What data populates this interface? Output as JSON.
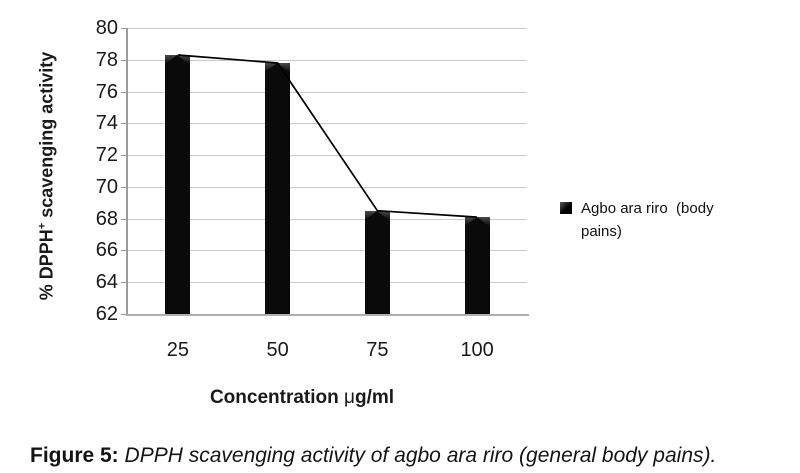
{
  "figure": {
    "caption_label": "Figure 5:",
    "caption_text": "DPPH scavenging activity of agbo ara riro (general body pains)."
  },
  "chart_data": {
    "type": "bar",
    "overlay": "line",
    "categories": [
      "25",
      "50",
      "75",
      "100"
    ],
    "series": [
      {
        "name": "Agbo ara riro  (body pains)",
        "values": [
          78.3,
          77.8,
          68.5,
          68.1
        ]
      }
    ],
    "title": "",
    "xlabel": "Concentration μg/ml",
    "xlabel_parts": {
      "prefix": "Concentration ",
      "mu": "μ",
      "suffix": "g/ml"
    },
    "ylabel": "% DPPH+ scavenging activity",
    "ylabel_parts": {
      "main": "% DPPH",
      "sup": "+",
      "rest": " scavenging activity"
    },
    "ylim": [
      62,
      80
    ],
    "ytick_step": 2,
    "grid": "horizontal",
    "legend_position": "right",
    "bar_color": "#0a0a0a",
    "line_color": "#000000",
    "gridline_color": "#c9c9c9",
    "axis_color": "#9b9b9b"
  }
}
